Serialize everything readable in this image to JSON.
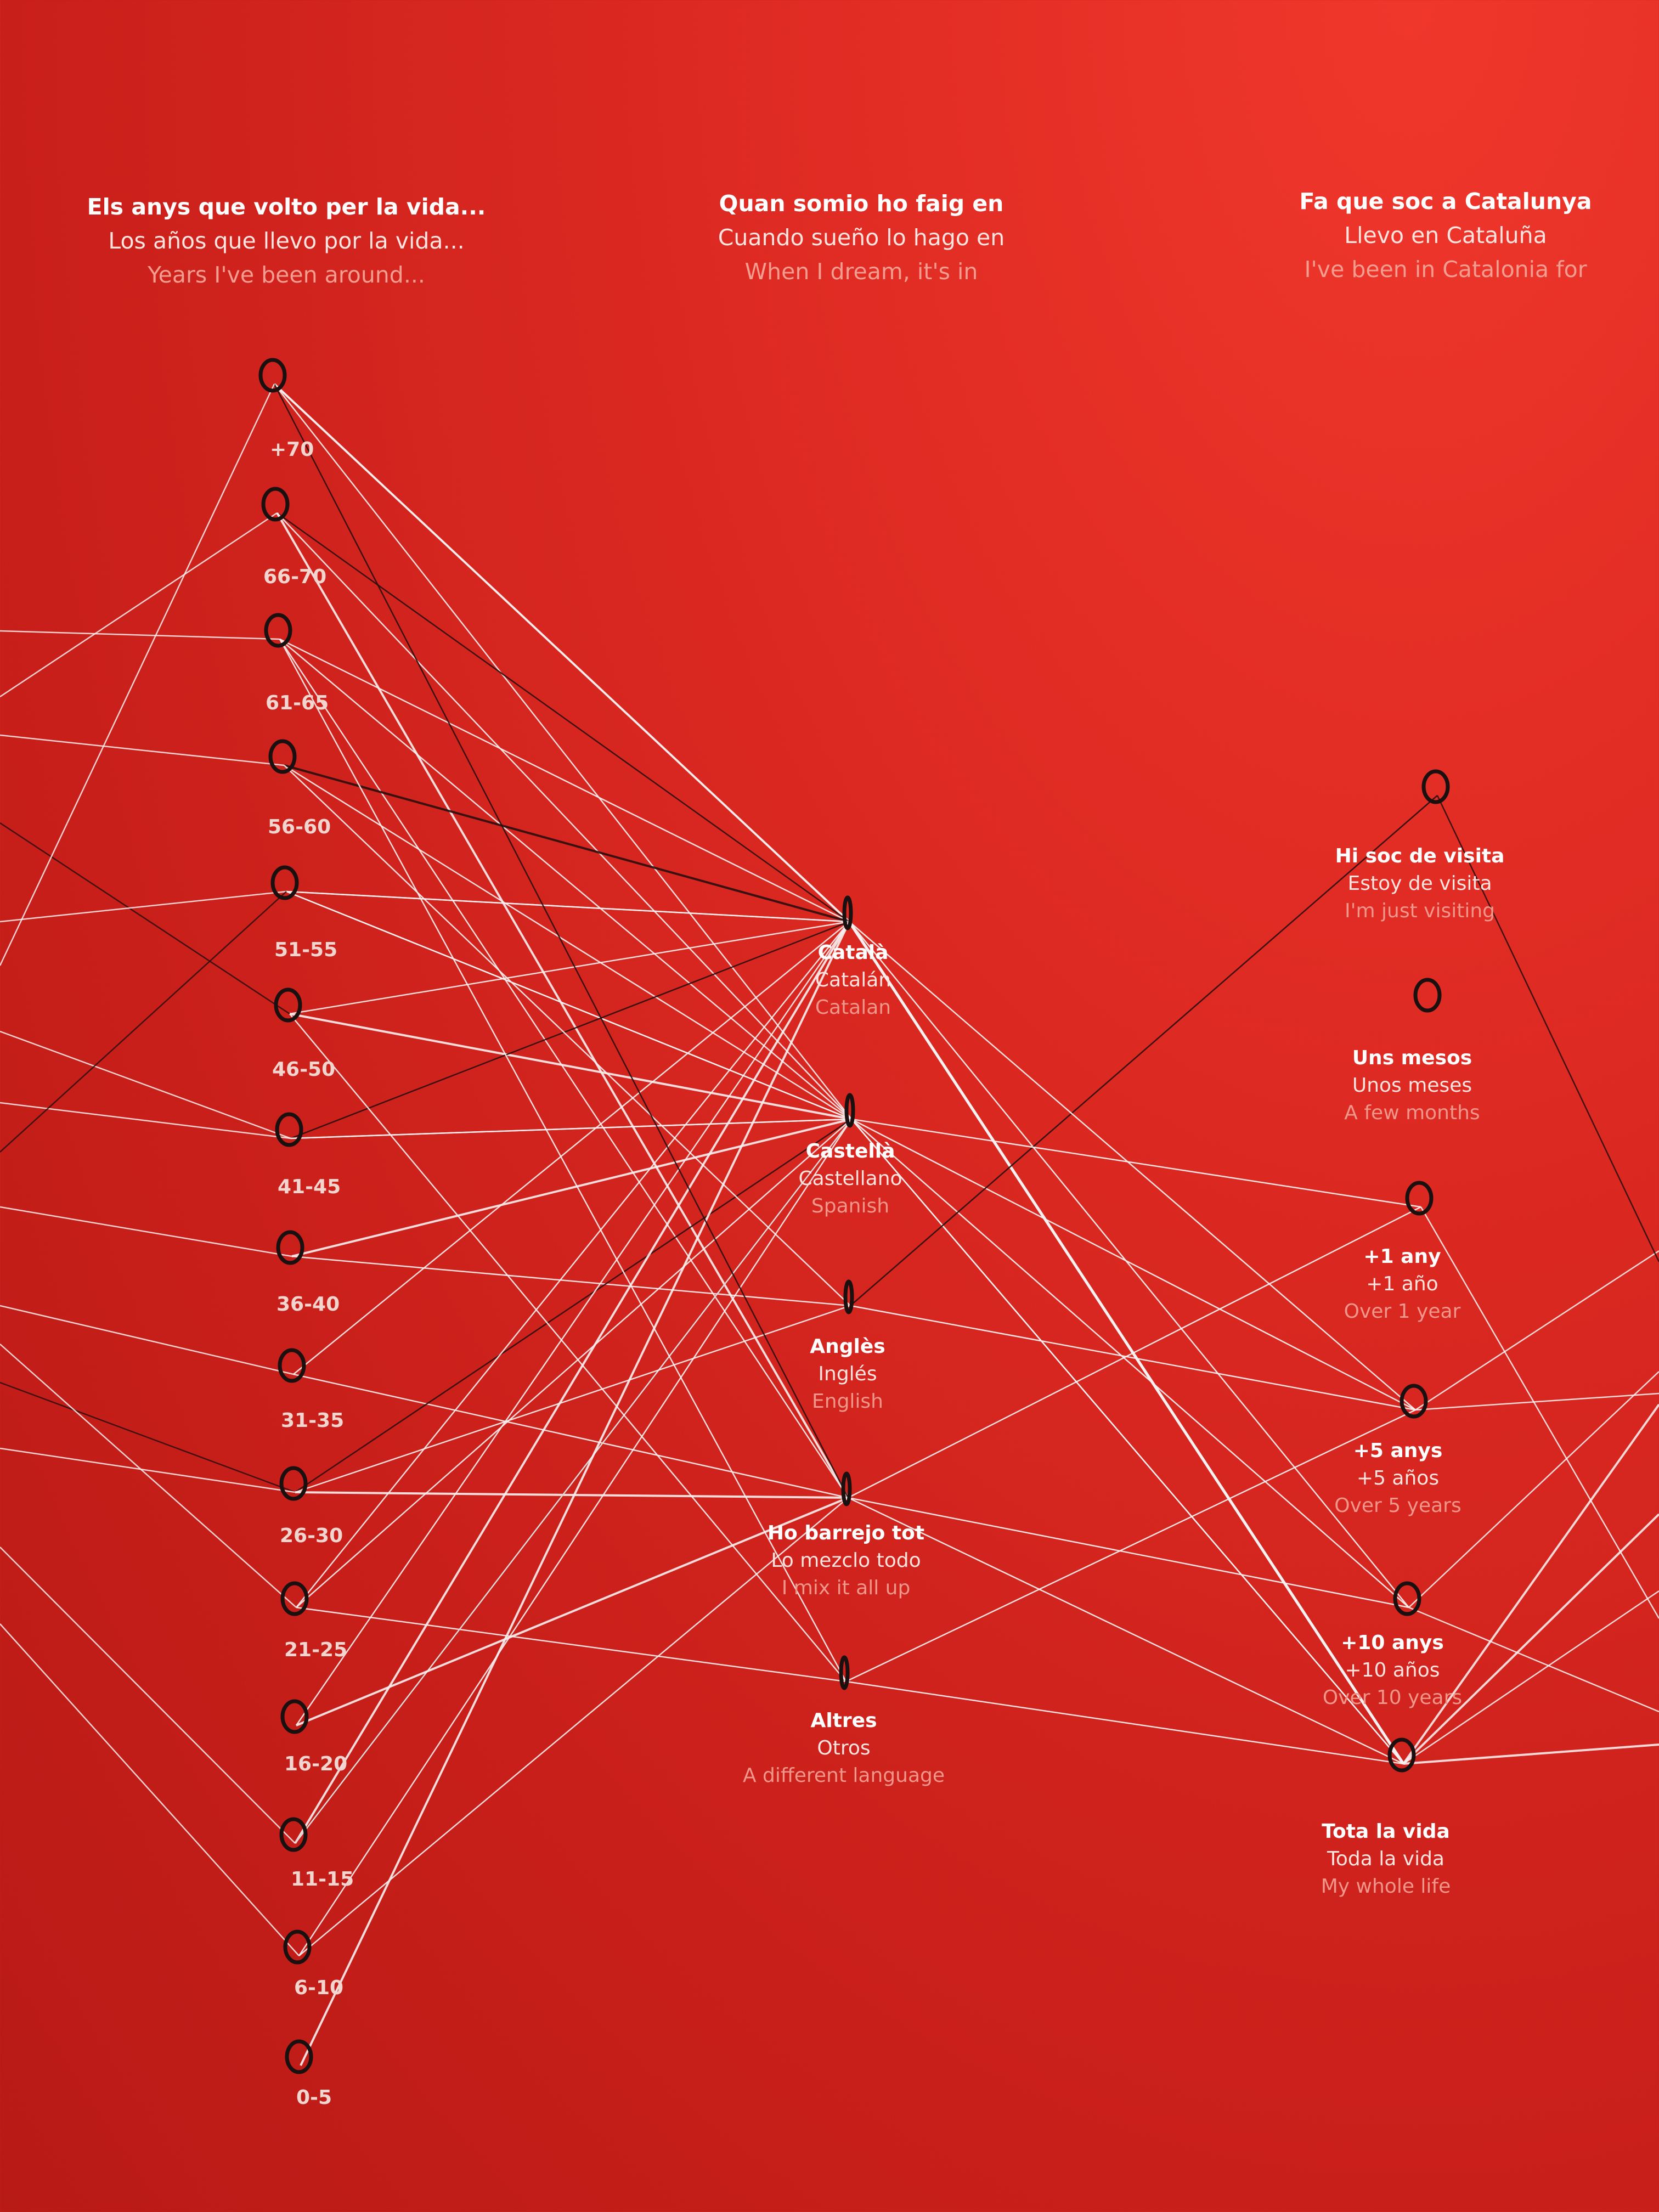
{
  "colors": {
    "wall": "#d7261f",
    "thread": "#f7f1f1",
    "dark_thread": "#2a0e0e",
    "hook": "#1b1010"
  },
  "columns": [
    {
      "heading": [
        "Els anys que volto per la vida...",
        "Los años que llevo por la vida...",
        "Years I've been around..."
      ],
      "answers": [
        {
          "label": "+70"
        },
        {
          "label": "66-70"
        },
        {
          "label": "61-65"
        },
        {
          "label": "56-60"
        },
        {
          "label": "51-55"
        },
        {
          "label": "46-50"
        },
        {
          "label": "41-45"
        },
        {
          "label": "36-40"
        },
        {
          "label": "31-35"
        },
        {
          "label": "26-30"
        },
        {
          "label": "21-25"
        },
        {
          "label": "16-20"
        },
        {
          "label": "11-15"
        },
        {
          "label": "6-10"
        },
        {
          "label": "0-5"
        }
      ]
    },
    {
      "heading": [
        "Quan somio ho faig en",
        "Cuando sueño lo hago en",
        "When I dream, it's in"
      ],
      "answers": [
        {
          "lines": [
            "Català",
            "Catalán",
            "Catalan"
          ]
        },
        {
          "lines": [
            "Castellà",
            "Castellano",
            "Spanish"
          ]
        },
        {
          "lines": [
            "Anglès",
            "Inglés",
            "English"
          ]
        },
        {
          "lines": [
            "Ho barrejo tot",
            "Lo mezclo todo",
            "I mix it all up"
          ]
        },
        {
          "lines": [
            "Altres",
            "Otros",
            "A different language"
          ]
        }
      ]
    },
    {
      "heading": [
        "Fa que soc a Catalunya",
        "Llevo en Cataluña",
        "I've been in Catalonia for"
      ],
      "answers": [
        {
          "lines": [
            "Hi soc de visita",
            "Estoy de visita",
            "I'm just visiting"
          ]
        },
        {
          "lines": [
            "Uns mesos",
            "Unos meses",
            "A few months"
          ]
        },
        {
          "lines": [
            "+1 any",
            "+1 año",
            "Over 1 year"
          ]
        },
        {
          "lines": [
            "+5 anys",
            "+5 años",
            "Over 5 years"
          ]
        },
        {
          "lines": [
            "+10 anys",
            "+10 años",
            "Over 10 years"
          ]
        },
        {
          "lines": [
            "Tota la vida",
            "Toda la vida",
            "My whole life"
          ]
        }
      ]
    }
  ]
}
